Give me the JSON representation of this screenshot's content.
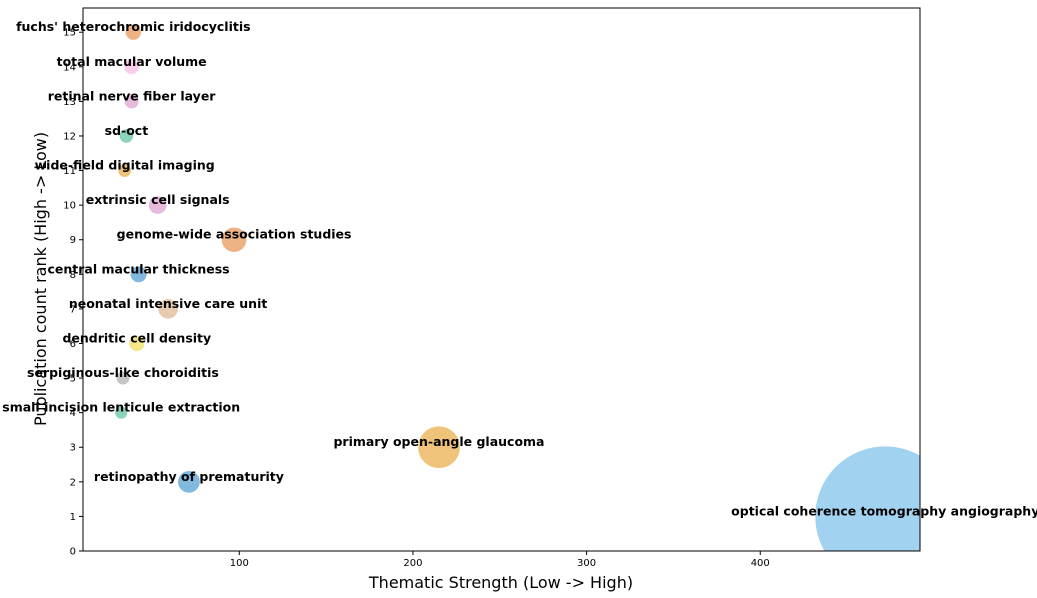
{
  "chart_data": {
    "type": "scatter",
    "title": "",
    "xlabel": "Thematic Strength (Low -> High)",
    "ylabel": "Publication count rank (High -> Low)",
    "xlim": [
      10,
      492
    ],
    "ylim": [
      0,
      15.7
    ],
    "xticks": [
      100,
      200,
      300,
      400
    ],
    "yticks": [
      0,
      1,
      2,
      3,
      4,
      5,
      6,
      7,
      8,
      9,
      10,
      11,
      12,
      13,
      14,
      15
    ],
    "grid": false,
    "points": [
      {
        "label": "optical coherence tomography angiography",
        "x": 472,
        "y": 1,
        "size": 1000,
        "color": "#87c5eb"
      },
      {
        "label": "retinopathy of prematurity",
        "x": 71,
        "y": 2,
        "size": 28,
        "color": "#5ea4d3"
      },
      {
        "label": "primary open-angle glaucoma",
        "x": 215,
        "y": 3,
        "size": 95,
        "color": "#ebb455"
      },
      {
        "label": "small incision lenticule extraction",
        "x": 32,
        "y": 4,
        "size": 10,
        "color": "#6ac8a6"
      },
      {
        "label": "serpiginous-like choroiditis",
        "x": 33,
        "y": 5,
        "size": 11,
        "color": "#b5b5b5"
      },
      {
        "label": "dendritic cell density",
        "x": 41,
        "y": 6,
        "size": 15,
        "color": "#f2e265"
      },
      {
        "label": "neonatal intensive care unit",
        "x": 59,
        "y": 7,
        "size": 23,
        "color": "#e2bb99"
      },
      {
        "label": "central macular thickness",
        "x": 42,
        "y": 8,
        "size": 16,
        "color": "#5ea4d3"
      },
      {
        "label": "genome-wide association studies",
        "x": 97,
        "y": 9,
        "size": 35,
        "color": "#e89e63"
      },
      {
        "label": "extrinsic cell signals",
        "x": 53,
        "y": 10,
        "size": 19,
        "color": "#dfa6d4"
      },
      {
        "label": "wide-field digital imaging",
        "x": 34,
        "y": 11,
        "size": 11,
        "color": "#ebb455"
      },
      {
        "label": "sd-oct",
        "x": 35,
        "y": 12,
        "size": 12,
        "color": "#6ac8a6"
      },
      {
        "label": "retinal nerve fiber layer",
        "x": 38,
        "y": 13,
        "size": 13,
        "color": "#dfa6d4"
      },
      {
        "label": "total macular volume",
        "x": 38,
        "y": 14,
        "size": 14,
        "color": "#f9c2e8"
      },
      {
        "label": "fuchs' heterochromic iridocyclitis",
        "x": 39,
        "y": 15,
        "size": 15,
        "color": "#e89e63"
      }
    ]
  }
}
